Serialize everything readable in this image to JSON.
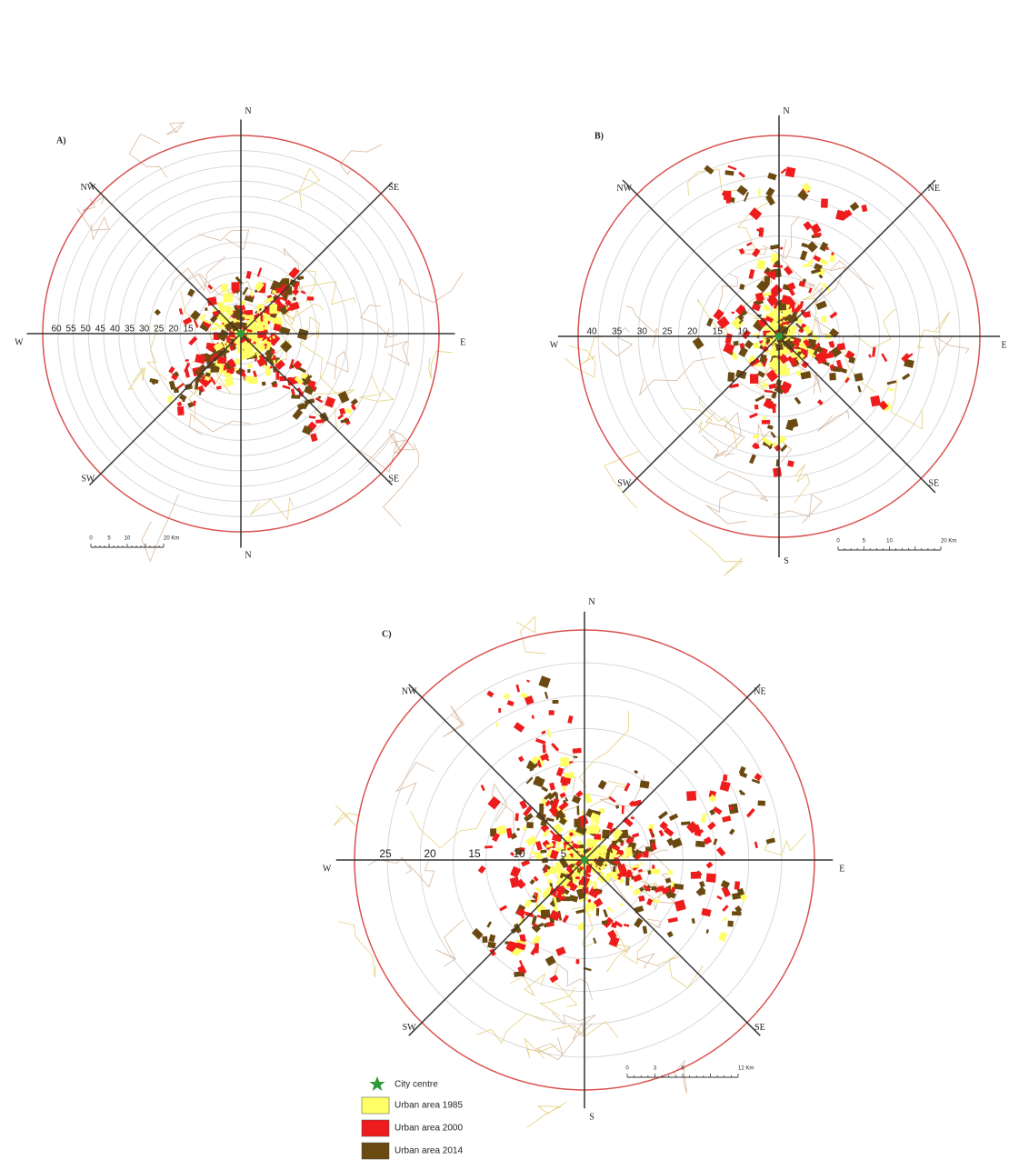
{
  "panels": [
    {
      "label": "A)",
      "directions": [
        "N",
        "SE",
        "E",
        "SE",
        "N",
        "SW",
        "W",
        "NW"
      ],
      "distances": [
        "60",
        "55",
        "50",
        "45",
        "40",
        "35",
        "30",
        "25",
        "20",
        "15"
      ],
      "scale": [
        "0",
        "5",
        "10",
        "20 Km"
      ]
    },
    {
      "label": "B)",
      "directions": [
        "N",
        "NE",
        "E",
        "SE",
        "S",
        "SW",
        "W",
        "NW"
      ],
      "distances": [
        "40",
        "35",
        "30",
        "25",
        "20",
        "15",
        "10"
      ],
      "scale": [
        "0",
        "5",
        "10",
        "20 Km"
      ]
    },
    {
      "label": "C)",
      "directions": [
        "N",
        "NE",
        "E",
        "SE",
        "S",
        "SW",
        "W",
        "NW"
      ],
      "distances": [
        "25",
        "20",
        "15",
        "10",
        "5"
      ],
      "scale": [
        "0",
        "3",
        "6",
        "12 Km"
      ]
    }
  ],
  "legend": [
    "City centre",
    "Urban area 1985",
    "Urban area 2000",
    "Urban area 2014"
  ]
}
